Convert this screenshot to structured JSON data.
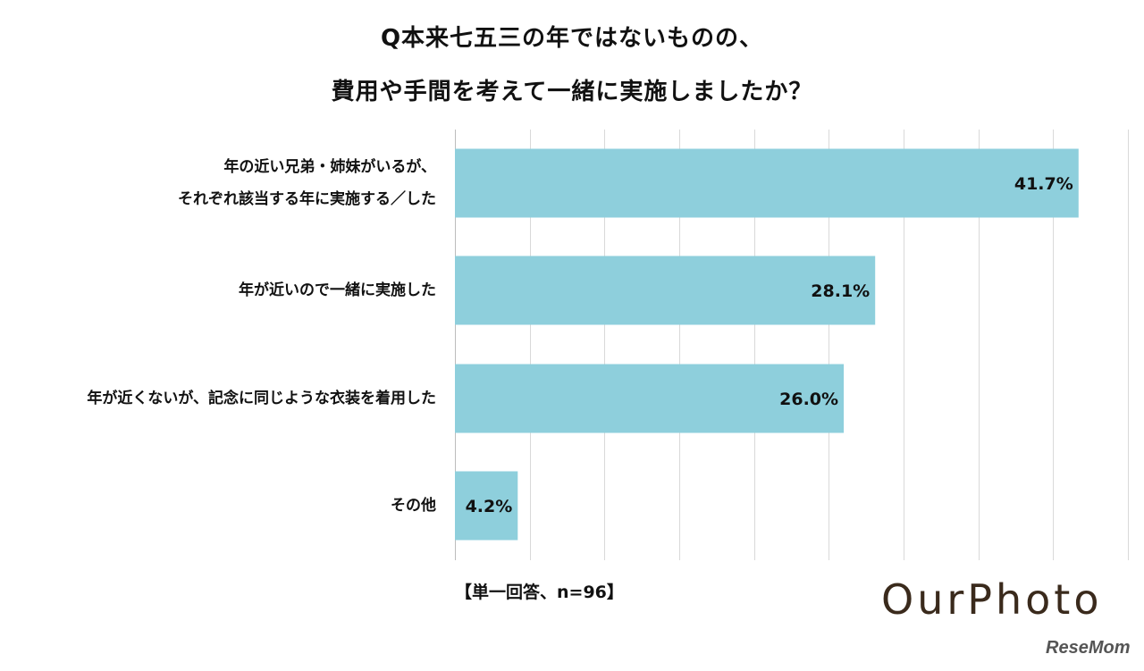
{
  "chart_data": {
    "type": "bar",
    "orientation": "horizontal",
    "title_lines": [
      "Q本来七五三の年ではないものの、",
      "費用や手間を考えて一緒に実施しましたか？"
    ],
    "categories": [
      [
        "年の近い兄弟・姉妹がいるが、",
        "それぞれ該当する年に実施する／した"
      ],
      [
        "年が近いので一緒に実施した"
      ],
      [
        "年が近くないが、記念に同じような衣装を着用した"
      ],
      [
        "その他"
      ]
    ],
    "values": [
      41.7,
      28.1,
      26.0,
      4.2
    ],
    "value_labels": [
      "41.7%",
      "28.1%",
      "26.0%",
      "4.2%"
    ],
    "xlim": [
      0,
      45
    ],
    "grid": true,
    "bar_color": "#8ecfdc",
    "note": "【単一回答、n=96】"
  },
  "brand": "OurPhoto",
  "watermark": "ReseMom"
}
